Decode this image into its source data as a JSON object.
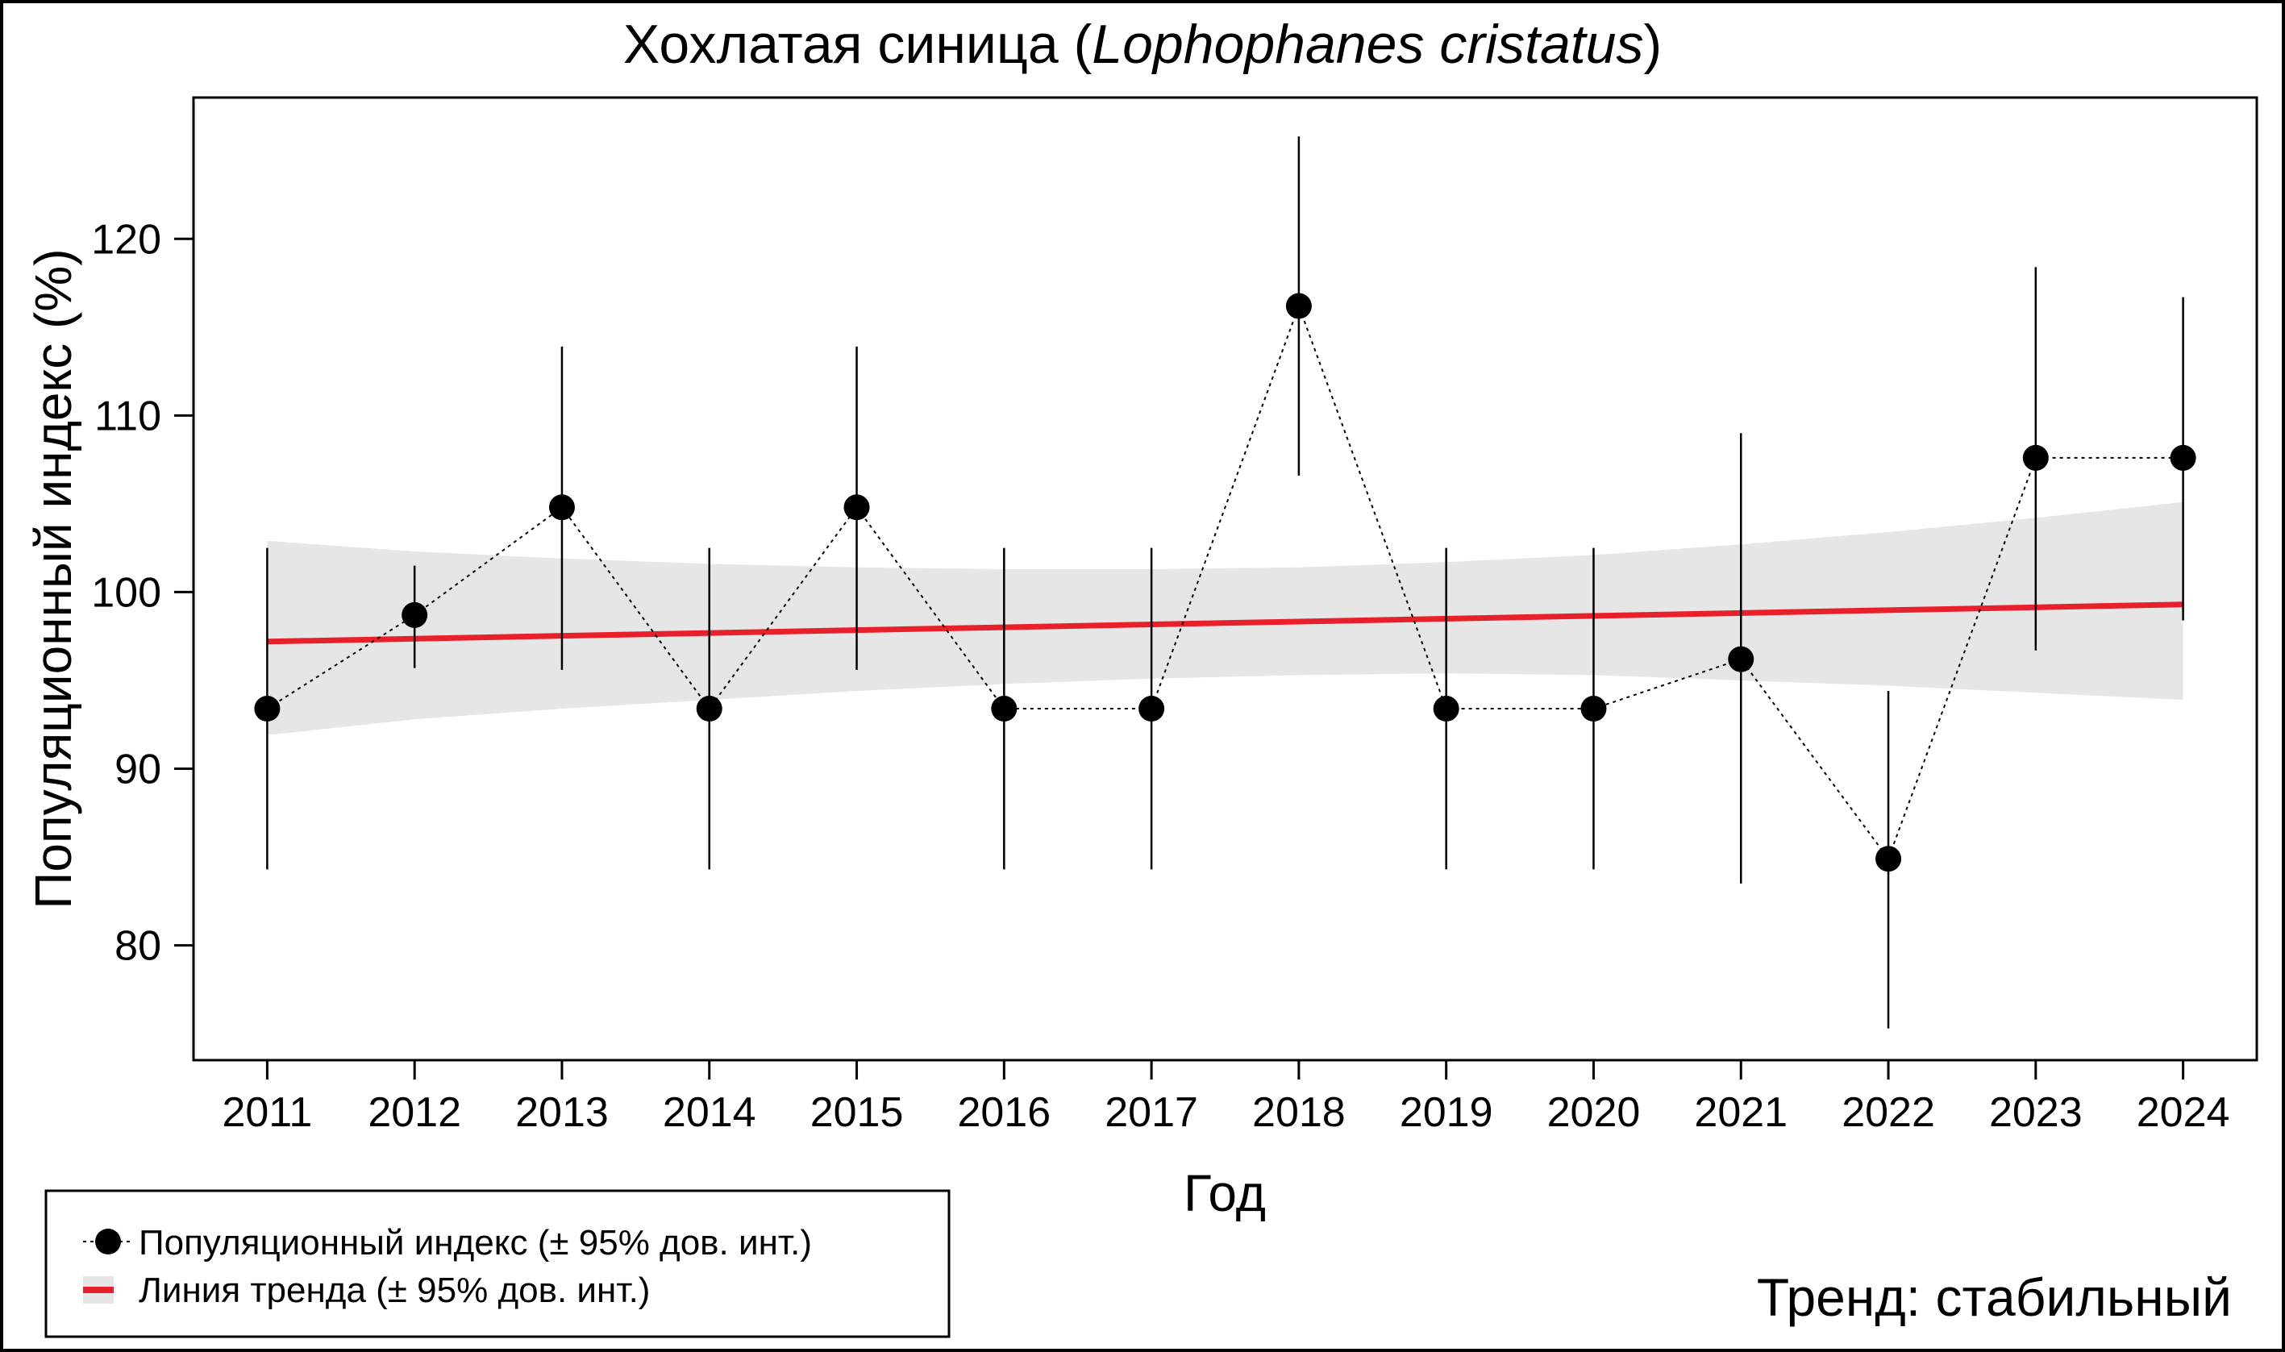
{
  "chart_data": {
    "type": "line",
    "title": "Хохлатая синица",
    "title_open": "(",
    "title_latin": "Lophophanes cristatus",
    "title_close": ")",
    "xlabel": "Год",
    "ylabel": "Популяционный индекс (%)",
    "categories": [
      "2011",
      "2012",
      "2013",
      "2014",
      "2015",
      "2016",
      "2017",
      "2018",
      "2019",
      "2020",
      "2021",
      "2022",
      "2023",
      "2024"
    ],
    "x": [
      2011,
      2012,
      2013,
      2014,
      2015,
      2016,
      2017,
      2018,
      2019,
      2020,
      2021,
      2022,
      2023,
      2024
    ],
    "xlim": [
      2010.5,
      2024.5
    ],
    "ylim": [
      73.5,
      128.0
    ],
    "yticks": [
      80,
      90,
      100,
      110,
      120
    ],
    "series": [
      {
        "name": "Популяционный индекс (± 95% дов. инт.)",
        "values": [
          93.4,
          98.7,
          104.8,
          93.4,
          104.8,
          93.4,
          93.4,
          116.2,
          93.4,
          93.4,
          96.2,
          84.9,
          107.6,
          107.6
        ],
        "lower": [
          84.3,
          95.7,
          95.6,
          84.3,
          95.6,
          84.3,
          84.3,
          106.6,
          84.3,
          84.3,
          83.5,
          75.3,
          96.7,
          98.4
        ],
        "upper": [
          102.5,
          101.5,
          113.9,
          102.5,
          113.9,
          102.5,
          102.5,
          125.8,
          102.5,
          102.5,
          109.0,
          94.4,
          118.4,
          116.7
        ],
        "color": "#000000"
      },
      {
        "name": "Линия тренда (± 95% дов. инт.)",
        "trend": {
          "start": 97.2,
          "end": 99.3
        },
        "ci_upper": [
          102.9,
          102.3,
          101.9,
          101.6,
          101.4,
          101.3,
          101.3,
          101.4,
          101.7,
          102.1,
          102.7,
          103.4,
          104.2,
          105.1
        ],
        "ci_lower": [
          91.9,
          92.8,
          93.4,
          93.9,
          94.4,
          94.8,
          95.1,
          95.3,
          95.4,
          95.3,
          95.0,
          94.7,
          94.3,
          93.9
        ],
        "color": "#e8202a",
        "band_color": "#e6e6e6"
      }
    ],
    "legend": {
      "position": "bottom-left",
      "items": [
        "Популяционный индекс (± 95% дов. инт.)",
        "Линия тренда (± 95% дов. инт.)"
      ]
    },
    "annotation": {
      "text": "Тренд: стабильный",
      "color": "#000080"
    }
  }
}
